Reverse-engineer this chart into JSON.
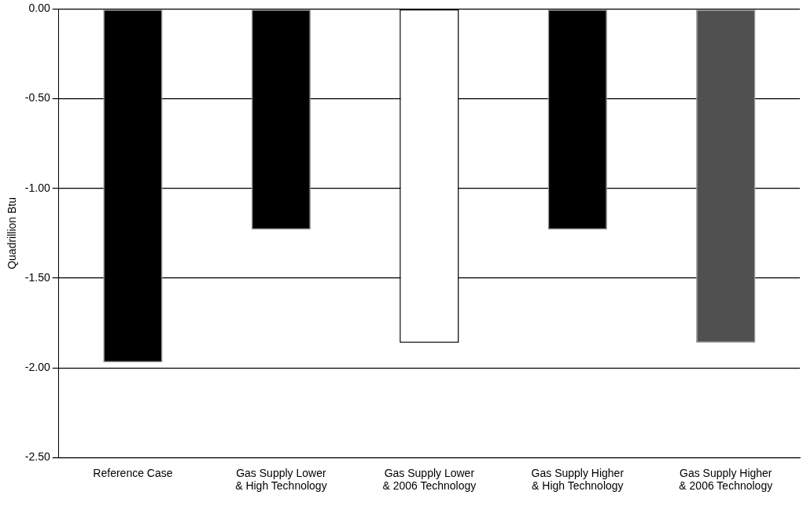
{
  "chart_data": {
    "type": "bar",
    "ylabel": "Quadrillion Btu",
    "categories": [
      "Reference Case",
      "Gas Supply Lower & High Technology",
      "Gas Supply Lower & 2006 Technology",
      "Gas Supply Higher & High Technology",
      "Gas Supply Higher & 2006 Technology"
    ],
    "values": [
      -1.97,
      -1.23,
      -1.86,
      -1.23,
      -1.86
    ],
    "colors": [
      "#000000",
      "#000000",
      "#ffffff",
      "#000000",
      "#505050"
    ],
    "ylim": [
      -2.5,
      0
    ],
    "yticks": [
      {
        "value": 0,
        "label": "0.00"
      },
      {
        "value": -0.5,
        "label": "-0.50"
      },
      {
        "value": -1,
        "label": "-1.00"
      },
      {
        "value": -1.5,
        "label": "-1.50"
      },
      {
        "value": -2,
        "label": "-2.00"
      },
      {
        "value": -2.5,
        "label": "-2.50"
      }
    ],
    "grid": "y",
    "legend": false
  }
}
